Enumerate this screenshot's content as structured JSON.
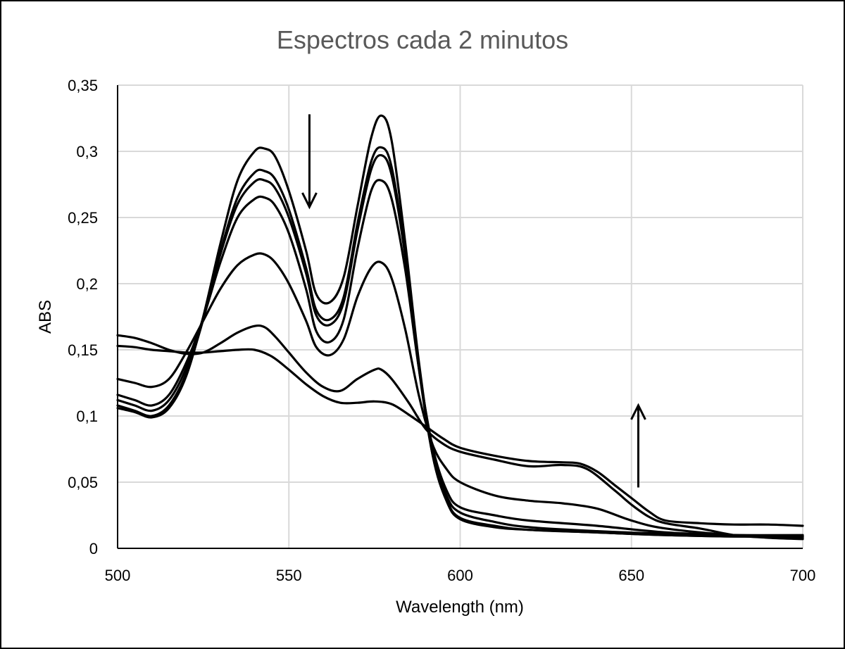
{
  "chart_data": {
    "type": "line",
    "title": "Espectros cada 2 minutos",
    "xlabel": "Wavelength (nm)",
    "ylabel": "ABS",
    "xlim": [
      500,
      700
    ],
    "ylim": [
      0,
      0.35
    ],
    "x_ticks": [
      500,
      550,
      600,
      650,
      700
    ],
    "y_ticks": [
      0,
      0.05,
      0.1,
      0.15,
      0.2,
      0.25,
      0.3,
      0.35
    ],
    "x_tick_labels": [
      "500",
      "550",
      "600",
      "650",
      "700"
    ],
    "y_tick_labels": [
      "0",
      "0,05",
      "0,1",
      "0,15",
      "0,2",
      "0,25",
      "0,3",
      "0,35"
    ],
    "grid": true,
    "line_color": "#000000",
    "annotations": [
      {
        "type": "arrow",
        "direction": "down",
        "x": 556,
        "y_from": 0.328,
        "y_to": 0.258
      },
      {
        "type": "arrow",
        "direction": "up",
        "x": 652,
        "y_from": 0.046,
        "y_to": 0.108
      }
    ],
    "series": [
      {
        "values": [
          [
            500,
            0.106
          ],
          [
            505,
            0.103
          ],
          [
            510,
            0.099
          ],
          [
            515,
            0.106
          ],
          [
            520,
            0.13
          ],
          [
            525,
            0.175
          ],
          [
            530,
            0.23
          ],
          [
            535,
            0.278
          ],
          [
            540,
            0.3
          ],
          [
            543,
            0.302
          ],
          [
            546,
            0.296
          ],
          [
            550,
            0.27
          ],
          [
            555,
            0.225
          ],
          [
            558,
            0.192
          ],
          [
            562,
            0.186
          ],
          [
            566,
            0.205
          ],
          [
            570,
            0.258
          ],
          [
            574,
            0.31
          ],
          [
            577,
            0.327
          ],
          [
            580,
            0.308
          ],
          [
            584,
            0.23
          ],
          [
            588,
            0.14
          ],
          [
            592,
            0.07
          ],
          [
            596,
            0.036
          ],
          [
            600,
            0.022
          ],
          [
            610,
            0.016
          ],
          [
            620,
            0.014
          ],
          [
            640,
            0.012
          ],
          [
            660,
            0.01
          ],
          [
            680,
            0.009
          ],
          [
            700,
            0.009
          ]
        ]
      },
      {
        "values": [
          [
            500,
            0.108
          ],
          [
            505,
            0.104
          ],
          [
            510,
            0.1
          ],
          [
            515,
            0.108
          ],
          [
            520,
            0.132
          ],
          [
            525,
            0.173
          ],
          [
            530,
            0.224
          ],
          [
            535,
            0.265
          ],
          [
            540,
            0.284
          ],
          [
            543,
            0.285
          ],
          [
            546,
            0.279
          ],
          [
            550,
            0.256
          ],
          [
            555,
            0.212
          ],
          [
            558,
            0.18
          ],
          [
            562,
            0.173
          ],
          [
            566,
            0.19
          ],
          [
            570,
            0.245
          ],
          [
            574,
            0.292
          ],
          [
            577,
            0.303
          ],
          [
            580,
            0.288
          ],
          [
            584,
            0.222
          ],
          [
            588,
            0.135
          ],
          [
            592,
            0.07
          ],
          [
            596,
            0.037
          ],
          [
            600,
            0.023
          ],
          [
            610,
            0.017
          ],
          [
            620,
            0.014
          ],
          [
            640,
            0.012
          ],
          [
            660,
            0.01
          ],
          [
            680,
            0.009
          ],
          [
            700,
            0.009
          ]
        ]
      },
      {
        "values": [
          [
            500,
            0.112
          ],
          [
            505,
            0.108
          ],
          [
            510,
            0.104
          ],
          [
            515,
            0.112
          ],
          [
            520,
            0.136
          ],
          [
            525,
            0.174
          ],
          [
            530,
            0.222
          ],
          [
            535,
            0.26
          ],
          [
            540,
            0.277
          ],
          [
            543,
            0.278
          ],
          [
            546,
            0.272
          ],
          [
            550,
            0.25
          ],
          [
            555,
            0.208
          ],
          [
            558,
            0.176
          ],
          [
            562,
            0.169
          ],
          [
            566,
            0.186
          ],
          [
            570,
            0.24
          ],
          [
            574,
            0.286
          ],
          [
            577,
            0.297
          ],
          [
            580,
            0.282
          ],
          [
            584,
            0.22
          ],
          [
            588,
            0.136
          ],
          [
            592,
            0.073
          ],
          [
            596,
            0.04
          ],
          [
            600,
            0.027
          ],
          [
            610,
            0.02
          ],
          [
            620,
            0.016
          ],
          [
            640,
            0.013
          ],
          [
            660,
            0.011
          ],
          [
            680,
            0.01
          ],
          [
            700,
            0.01
          ]
        ]
      },
      {
        "values": [
          [
            500,
            0.116
          ],
          [
            505,
            0.112
          ],
          [
            510,
            0.108
          ],
          [
            515,
            0.116
          ],
          [
            520,
            0.14
          ],
          [
            525,
            0.174
          ],
          [
            530,
            0.216
          ],
          [
            535,
            0.25
          ],
          [
            540,
            0.264
          ],
          [
            543,
            0.265
          ],
          [
            546,
            0.259
          ],
          [
            550,
            0.238
          ],
          [
            555,
            0.196
          ],
          [
            558,
            0.164
          ],
          [
            562,
            0.156
          ],
          [
            566,
            0.173
          ],
          [
            570,
            0.226
          ],
          [
            574,
            0.27
          ],
          [
            577,
            0.278
          ],
          [
            580,
            0.264
          ],
          [
            584,
            0.21
          ],
          [
            588,
            0.135
          ],
          [
            592,
            0.076
          ],
          [
            596,
            0.044
          ],
          [
            600,
            0.031
          ],
          [
            610,
            0.025
          ],
          [
            620,
            0.021
          ],
          [
            640,
            0.017
          ],
          [
            660,
            0.012
          ],
          [
            680,
            0.01
          ],
          [
            700,
            0.009
          ]
        ]
      },
      {
        "values": [
          [
            500,
            0.128
          ],
          [
            505,
            0.125
          ],
          [
            510,
            0.122
          ],
          [
            515,
            0.128
          ],
          [
            520,
            0.148
          ],
          [
            525,
            0.172
          ],
          [
            530,
            0.196
          ],
          [
            535,
            0.214
          ],
          [
            540,
            0.222
          ],
          [
            543,
            0.222
          ],
          [
            546,
            0.216
          ],
          [
            550,
            0.2
          ],
          [
            555,
            0.172
          ],
          [
            558,
            0.152
          ],
          [
            562,
            0.146
          ],
          [
            566,
            0.158
          ],
          [
            570,
            0.19
          ],
          [
            574,
            0.212
          ],
          [
            577,
            0.216
          ],
          [
            580,
            0.204
          ],
          [
            584,
            0.165
          ],
          [
            588,
            0.115
          ],
          [
            592,
            0.078
          ],
          [
            596,
            0.06
          ],
          [
            600,
            0.05
          ],
          [
            610,
            0.04
          ],
          [
            620,
            0.036
          ],
          [
            630,
            0.034
          ],
          [
            640,
            0.03
          ],
          [
            650,
            0.021
          ],
          [
            660,
            0.015
          ],
          [
            680,
            0.01
          ],
          [
            700,
            0.008
          ]
        ]
      },
      {
        "values": [
          [
            500,
            0.161
          ],
          [
            505,
            0.159
          ],
          [
            510,
            0.155
          ],
          [
            515,
            0.15
          ],
          [
            520,
            0.147
          ],
          [
            525,
            0.148
          ],
          [
            530,
            0.155
          ],
          [
            535,
            0.163
          ],
          [
            540,
            0.168
          ],
          [
            543,
            0.167
          ],
          [
            546,
            0.16
          ],
          [
            550,
            0.148
          ],
          [
            555,
            0.133
          ],
          [
            560,
            0.122
          ],
          [
            565,
            0.119
          ],
          [
            570,
            0.128
          ],
          [
            575,
            0.135
          ],
          [
            577,
            0.135
          ],
          [
            580,
            0.128
          ],
          [
            585,
            0.11
          ],
          [
            590,
            0.09
          ],
          [
            595,
            0.079
          ],
          [
            600,
            0.073
          ],
          [
            610,
            0.067
          ],
          [
            620,
            0.062
          ],
          [
            630,
            0.063
          ],
          [
            637,
            0.06
          ],
          [
            645,
            0.044
          ],
          [
            650,
            0.033
          ],
          [
            655,
            0.024
          ],
          [
            660,
            0.019
          ],
          [
            670,
            0.015
          ],
          [
            680,
            0.01
          ],
          [
            690,
            0.008
          ],
          [
            700,
            0.007
          ]
        ]
      },
      {
        "values": [
          [
            500,
            0.153
          ],
          [
            505,
            0.152
          ],
          [
            510,
            0.15
          ],
          [
            515,
            0.149
          ],
          [
            520,
            0.148
          ],
          [
            525,
            0.148
          ],
          [
            530,
            0.149
          ],
          [
            535,
            0.15
          ],
          [
            540,
            0.15
          ],
          [
            545,
            0.145
          ],
          [
            550,
            0.135
          ],
          [
            555,
            0.124
          ],
          [
            560,
            0.115
          ],
          [
            565,
            0.11
          ],
          [
            570,
            0.11
          ],
          [
            575,
            0.111
          ],
          [
            580,
            0.109
          ],
          [
            585,
            0.101
          ],
          [
            590,
            0.092
          ],
          [
            595,
            0.083
          ],
          [
            600,
            0.076
          ],
          [
            610,
            0.07
          ],
          [
            620,
            0.066
          ],
          [
            630,
            0.065
          ],
          [
            635,
            0.064
          ],
          [
            640,
            0.058
          ],
          [
            645,
            0.048
          ],
          [
            650,
            0.038
          ],
          [
            655,
            0.028
          ],
          [
            660,
            0.021
          ],
          [
            670,
            0.019
          ],
          [
            680,
            0.018
          ],
          [
            690,
            0.018
          ],
          [
            700,
            0.017
          ]
        ]
      }
    ]
  }
}
